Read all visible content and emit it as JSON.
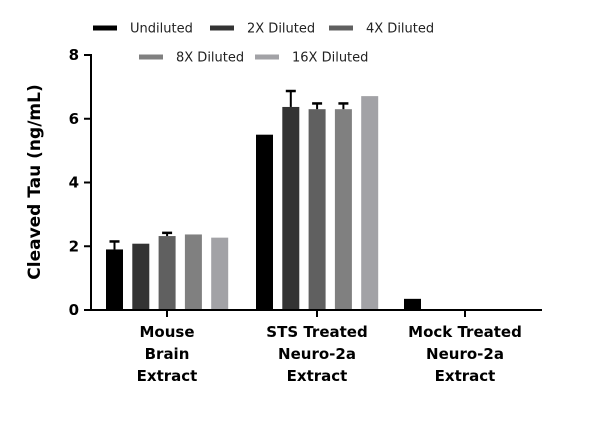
{
  "chart_data": {
    "type": "bar",
    "ylabel": "Cleaved Tau (ng/mL)",
    "xlabel": "",
    "ylim": [
      0,
      8
    ],
    "yticks": [
      "0",
      "2",
      "4",
      "6",
      "8"
    ],
    "grid": false,
    "legend_position": "top",
    "categories": [
      [
        "Mouse",
        "Brain",
        "Extract"
      ],
      [
        "STS Treated",
        "Neuro-2a",
        "Extract"
      ],
      [
        "Mock Treated",
        "Neuro-2a",
        "Extract"
      ]
    ],
    "series": [
      {
        "name": "Undiluted",
        "color": "#000000",
        "values": [
          1.9,
          5.5,
          0.35
        ],
        "error": [
          0.25,
          null,
          null
        ]
      },
      {
        "name": "2X Diluted",
        "color": "#333333",
        "values": [
          2.08,
          6.37,
          null
        ],
        "error": [
          null,
          0.5,
          null
        ]
      },
      {
        "name": "4X Diluted",
        "color": "#606060",
        "values": [
          2.32,
          6.3,
          null
        ],
        "error": [
          0.1,
          0.18,
          null
        ]
      },
      {
        "name": "8X Diluted",
        "color": "#808080",
        "values": [
          2.37,
          6.3,
          null
        ],
        "error": [
          null,
          0.18,
          null
        ]
      },
      {
        "name": "16X Diluted",
        "color": "#a2a2a6",
        "values": [
          2.27,
          6.71,
          null
        ],
        "error": [
          null,
          null,
          null
        ]
      }
    ]
  }
}
